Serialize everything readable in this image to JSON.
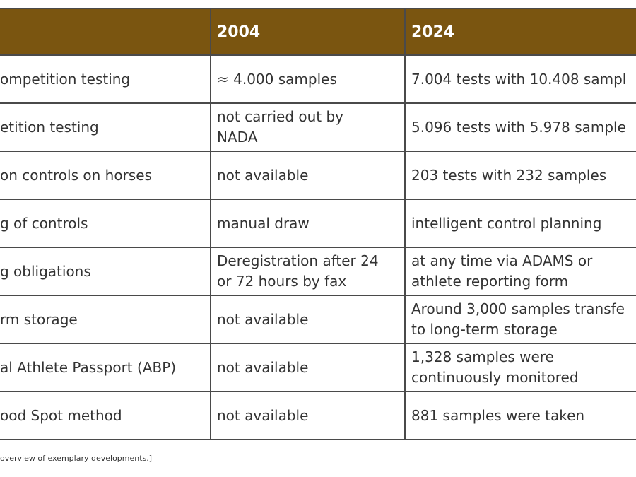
{
  "table": {
    "header": [
      "2004",
      "2024"
    ],
    "rows": [
      [
        [
          "ompetition testing"
        ],
        [
          "≈ 4.000 samples"
        ],
        [
          "7.004 tests with 10.408 sampl"
        ]
      ],
      [
        [
          "etition testing"
        ],
        [
          "not carried out by",
          "NADA"
        ],
        [
          "5.096 tests with 5.978 sample"
        ]
      ],
      [
        [
          "on controls on horses"
        ],
        [
          "not available"
        ],
        [
          "203 tests with 232 samples"
        ]
      ],
      [
        [
          "g of controls"
        ],
        [
          "manual draw"
        ],
        [
          "intelligent control planning"
        ]
      ],
      [
        [
          "g obligations"
        ],
        [
          "Deregistration after 24",
          "or 72 hours by fax"
        ],
        [
          "at any time via ADAMS or",
          "athlete reporting form"
        ]
      ],
      [
        [
          "rm storage"
        ],
        [
          "not available"
        ],
        [
          "Around 3,000 samples transfe",
          "to long-term storage"
        ]
      ],
      [
        [
          "al Athlete Passport (ABP)"
        ],
        [
          "not available"
        ],
        [
          "1,328 samples were",
          "continuously monitored"
        ]
      ],
      [
        [
          "ood Spot method"
        ],
        [
          "not available"
        ],
        [
          "881 samples were taken"
        ]
      ]
    ],
    "caption": "overview of exemplary developments.]"
  }
}
